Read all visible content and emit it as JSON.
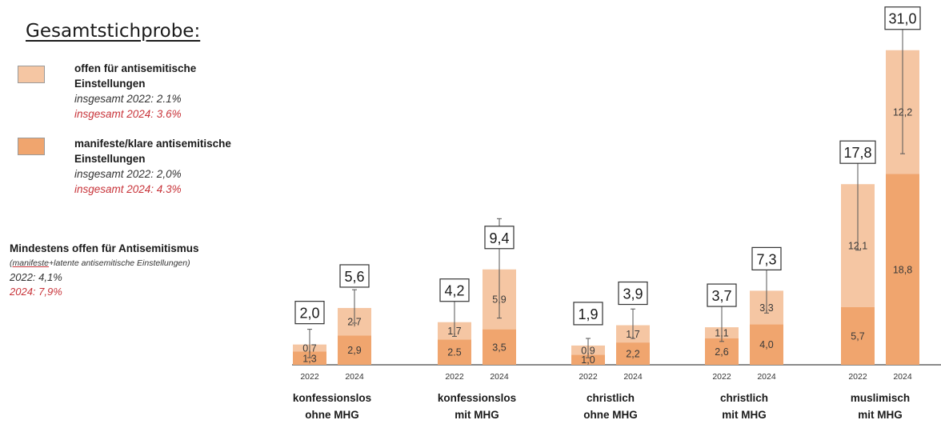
{
  "legend": {
    "title": "Gesamtstichprobe:",
    "latent": {
      "label_line1": "offen für antisemitische",
      "label_line2": "Einstellungen",
      "total_2022": "insgesamt 2022: 2.1%",
      "total_2024": "insgesamt 2024: 3.6%",
      "color": "#f5c6a3"
    },
    "manifest": {
      "label_line1": "manifeste/klare antisemitische",
      "label_line2": "Einstellungen",
      "total_2022": "insgesamt 2022: 2,0%",
      "total_2024": "insgesamt 2024: 4.3%",
      "color": "#f0a56e"
    }
  },
  "summary": {
    "heading": "Mindestens offen für Antisemitismus",
    "note_prefix": "(",
    "note_underlined": "manifeste",
    "note_rest": "+latente antisemitische Einstellungen)",
    "line_2022": "2022: 4,1%",
    "line_2024": "2024: 7,9%"
  },
  "chart_data": {
    "type": "bar",
    "stacked": true,
    "categories": [
      {
        "line1": "konfessionslos",
        "line2": "ohne MHG"
      },
      {
        "line1": "konfessionslos",
        "line2": "mit MHG"
      },
      {
        "line1": "christlich",
        "line2": "ohne MHG"
      },
      {
        "line1": "christlich",
        "line2": "mit MHG"
      },
      {
        "line1": "muslimisch",
        "line2": "mit MHG"
      }
    ],
    "years": [
      "2022",
      "2024"
    ],
    "groups": [
      {
        "bars": [
          {
            "year": "2022",
            "manifest": 1.3,
            "latent": 0.7,
            "total": 2.0,
            "manifest_label": "1,3",
            "latent_label": "0,7",
            "total_label": "2,0",
            "err_low": 0.7,
            "err_high": 3.5
          },
          {
            "year": "2024",
            "manifest": 2.9,
            "latent": 2.7,
            "total": 5.6,
            "manifest_label": "2,9",
            "latent_label": "2,7",
            "total_label": "5,6",
            "err_low": 4.1,
            "err_high": 7.4
          }
        ]
      },
      {
        "bars": [
          {
            "year": "2022",
            "manifest": 2.5,
            "latent": 1.7,
            "total": 4.2,
            "manifest_label": "2.5",
            "latent_label": "1,7",
            "total_label": "4,2",
            "err_low": 2.8,
            "err_high": 7.2
          },
          {
            "year": "2024",
            "manifest": 3.5,
            "latent": 5.9,
            "total": 9.4,
            "manifest_label": "3,5",
            "latent_label": "5,9",
            "total_label": "9,4",
            "err_low": 4.6,
            "err_high": 14.4
          }
        ]
      },
      {
        "bars": [
          {
            "year": "2022",
            "manifest": 1.0,
            "latent": 0.9,
            "total": 1.9,
            "manifest_label": "1,0",
            "latent_label": "0,9",
            "total_label": "1,9",
            "err_low": 0.7,
            "err_high": 2.6
          },
          {
            "year": "2024",
            "manifest": 2.2,
            "latent": 1.7,
            "total": 3.9,
            "manifest_label": "2,2",
            "latent_label": "1,7",
            "total_label": "3,9",
            "err_low": 2.6,
            "err_high": 5.5
          }
        ]
      },
      {
        "bars": [
          {
            "year": "2022",
            "manifest": 2.6,
            "latent": 1.1,
            "total": 3.7,
            "manifest_label": "2,6",
            "latent_label": "1,1",
            "total_label": "3,7",
            "err_low": 2.3,
            "err_high": 5.8
          },
          {
            "year": "2024",
            "manifest": 4.0,
            "latent": 3.3,
            "total": 7.3,
            "manifest_label": "4,0",
            "latent_label": "3,3",
            "total_label": "7,3",
            "err_low": 5.1,
            "err_high": 10.1
          }
        ]
      },
      {
        "bars": [
          {
            "year": "2022",
            "manifest": 5.7,
            "latent": 12.1,
            "total": 17.8,
            "manifest_label": "5,7",
            "latent_label": "12,1",
            "total_label": "17,8",
            "err_low": 11.3,
            "err_high": 21.5
          },
          {
            "year": "2024",
            "manifest": 18.8,
            "latent": 12.2,
            "total": 31.0,
            "manifest_label": "18,8",
            "latent_label": "12,2",
            "total_label": "31,0",
            "err_low": 20.8,
            "err_high": 35.0
          }
        ]
      }
    ],
    "ylim": [
      0,
      35
    ]
  }
}
